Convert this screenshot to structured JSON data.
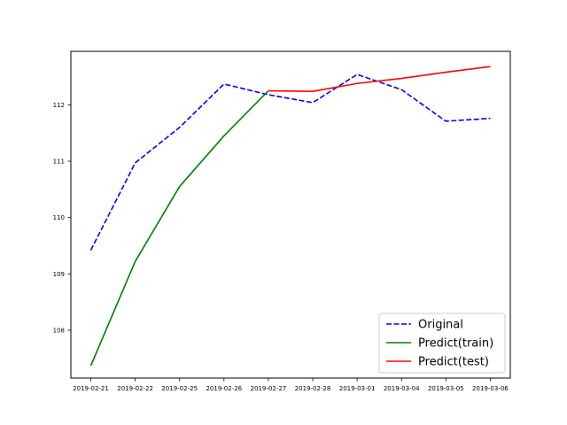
{
  "chart_data": {
    "type": "line",
    "title": "",
    "xlabel": "",
    "ylabel": "",
    "x": [
      "2019-02-21",
      "2019-02-22",
      "2019-02-25",
      "2019-02-26",
      "2019-02-27",
      "2019-02-28",
      "2019-03-01",
      "2019-03-04",
      "2019-03-05",
      "2019-03-06"
    ],
    "ylim": [
      107.15,
      112.95
    ],
    "yticks": [
      108,
      109,
      110,
      111,
      112
    ],
    "grid": false,
    "legend_position": "lower-right",
    "series": [
      {
        "name": "Original",
        "color": "#0000ff",
        "style": "dashed",
        "values": [
          109.42,
          110.97,
          111.6,
          112.37,
          112.18,
          112.04,
          112.54,
          112.27,
          111.71,
          111.76
        ]
      },
      {
        "name": "Predict(train)",
        "color": "#008000",
        "style": "solid",
        "values": [
          107.37,
          109.22,
          110.55,
          111.45,
          112.25,
          null,
          null,
          null,
          null,
          null
        ]
      },
      {
        "name": "Predict(test)",
        "color": "#ff0000",
        "style": "solid",
        "values": [
          null,
          null,
          null,
          null,
          112.25,
          112.24,
          112.38,
          112.47,
          112.58,
          112.68
        ]
      }
    ]
  }
}
